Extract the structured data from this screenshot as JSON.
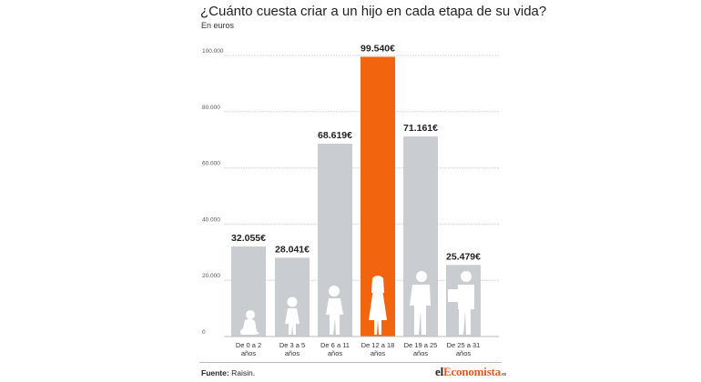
{
  "header": {
    "title": "¿Cuánto cuesta criar a un hijo en cada etapa de su vida?",
    "subtitle": "En euros"
  },
  "footer": {
    "source_label": "Fuente:",
    "source_value": "Raisin.",
    "logo_part1": "el",
    "logo_part2": "Economista",
    "logo_suffix": ".es"
  },
  "colors": {
    "bar": "#c9ccd0",
    "highlight": "#f2650e",
    "silhouette": "#ffffff",
    "gridline": "#d6d6d6"
  },
  "chart_data": {
    "type": "bar",
    "title": "¿Cuánto cuesta criar a un hijo en cada etapa de su vida?",
    "subtitle": "En euros",
    "categories": [
      [
        "De 0 a 2",
        "años"
      ],
      [
        "De 3 a 5",
        "años"
      ],
      [
        "De 6 a 11",
        "años"
      ],
      [
        "De 12 a 18",
        "años"
      ],
      [
        "De 19 a 25",
        "años"
      ],
      [
        "De 25 a 31",
        "años"
      ]
    ],
    "values": [
      32055,
      28041,
      68619,
      99540,
      71161,
      25479
    ],
    "value_labels": [
      "32.055€",
      "28.041€",
      "68.619€",
      "99.540€",
      "71.161€",
      "25.479€"
    ],
    "highlight_index": 3,
    "icons": [
      "baby-sitting-icon",
      "toddler-icon",
      "child-icon",
      "teen-girl-icon",
      "young-adult-icon",
      "adult-reading-icon"
    ],
    "ylim": [
      0,
      100000
    ],
    "yticks": [
      0,
      20000,
      40000,
      60000,
      80000,
      100000
    ],
    "ytick_labels": [
      "0",
      "20.000",
      "40.000",
      "60.000",
      "80.000",
      "100.000"
    ],
    "grid": true
  }
}
